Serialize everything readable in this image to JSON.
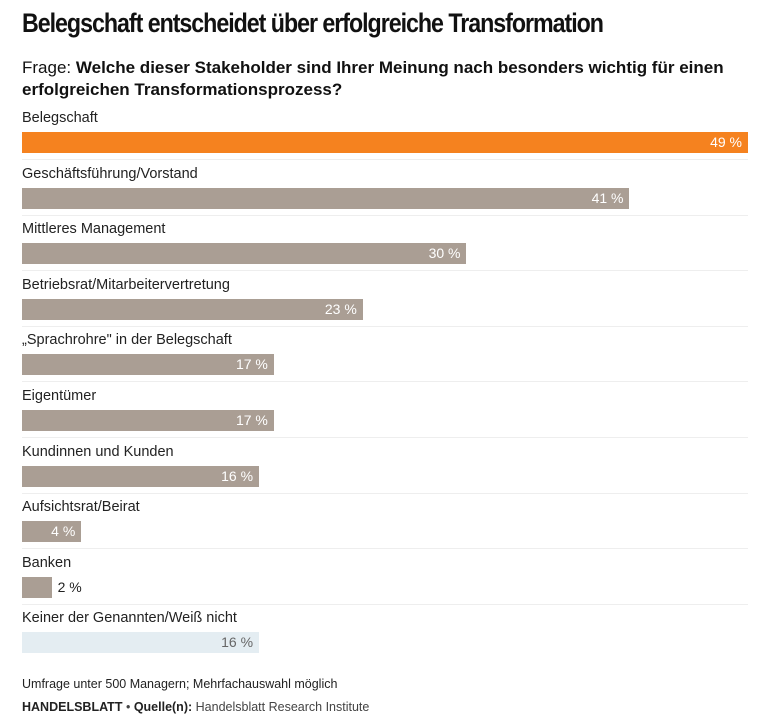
{
  "header": {
    "title": "Belegschaft entscheidet über erfolgreiche Transformation",
    "question_prefix": "Frage:",
    "question_text": "Welche dieser Stakeholder sind Ihrer Meinung nach besonders wichtig für einen erfolgreichen Transformationsprozess?"
  },
  "chart_data": {
    "type": "bar",
    "orientation": "horizontal",
    "title": "Belegschaft entscheidet über erfolgreiche Transformation",
    "subtitle": "Frage: Welche dieser Stakeholder sind Ihrer Meinung nach besonders wichtig für einen erfolgreichen Transformationsprozess?",
    "unit": "%",
    "xlim": [
      0,
      49
    ],
    "grid": false,
    "categories": [
      "Belegschaft",
      "Geschäftsführung/Vorstand",
      "Mittleres Management",
      "Betriebsrat/Mitarbeitervertretung",
      "„Sprachrohre\" in der Belegschaft",
      "Eigentümer",
      "Kundinnen und Kunden",
      "Aufsichtsrat/Beirat",
      "Banken",
      "Keiner der Genannten/Weiß nicht"
    ],
    "values": [
      49,
      41,
      30,
      23,
      17,
      17,
      16,
      4,
      2,
      16
    ],
    "value_labels": [
      "49 %",
      "41 %",
      "30 %",
      "23 %",
      "17 %",
      "17 %",
      "16 %",
      "4 %",
      "2 %",
      "16 %"
    ],
    "bar_styles": [
      "highlight",
      "default",
      "default",
      "default",
      "default",
      "default",
      "default",
      "default",
      "default",
      "neutral"
    ],
    "colors": {
      "highlight": "#f5821f",
      "default": "#aa9e94",
      "neutral": "#e4edf2"
    }
  },
  "footer": {
    "note": "Umfrage unter 500 Managern; Mehrfachauswahl möglich",
    "brand": "HANDELSBLATT",
    "bullet": "•",
    "source_label": "Quelle(n):",
    "source": "Handelsblatt Research Institute"
  }
}
